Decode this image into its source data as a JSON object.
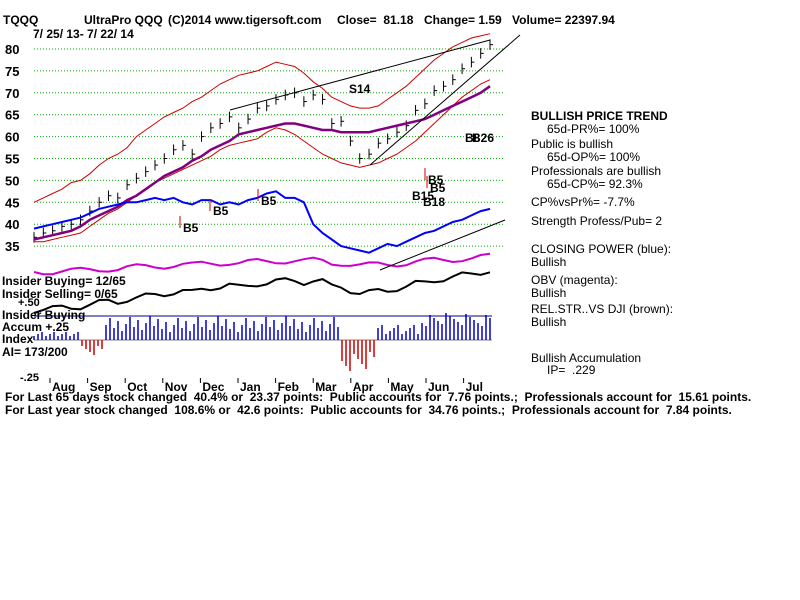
{
  "header": {
    "ticker": "TQQQ",
    "name": "UltraPro QQQ",
    "copyright": "(C)2014 www.tigersoft.com",
    "close": "Close=  81.18",
    "change": "Change= 1.59",
    "volume": "Volume= 22397.94",
    "date_range": "7/ 25/ 13- 7/ 22/ 14"
  },
  "colors": {
    "price": "#000000",
    "band": "#cc0000",
    "ma": "#800080",
    "closing_power": "#0000ff",
    "obv": "#cc00cc",
    "relstr": "#000000",
    "accum_pos": "#0000cc",
    "accum_neg": "#cc0000",
    "arrow": "#cc0000",
    "grid": "#00aa00"
  },
  "chart_data": {
    "type": "line",
    "title": "UltraPro QQQ",
    "y_ticks": [
      80,
      75,
      70,
      65,
      60,
      55,
      50,
      45,
      40,
      35
    ],
    "ylim": [
      32,
      84
    ],
    "months": [
      "Aug",
      "Sep",
      "Oct",
      "Nov",
      "Dec",
      "Jan",
      "Feb",
      "Mar",
      "Apr",
      "May",
      "Jun",
      "Jul"
    ],
    "series": [
      {
        "name": "price",
        "values": [
          37,
          38,
          38.5,
          39.5,
          40,
          41,
          43,
          45,
          46.5,
          46,
          49,
          50.5,
          52,
          53.5,
          55,
          57,
          58,
          56,
          60,
          62,
          63,
          64.5,
          62,
          64,
          66.5,
          67,
          68.5,
          69.5,
          70,
          68,
          69.5,
          68.5,
          63,
          63.5,
          59,
          55,
          56,
          58.5,
          59.5,
          61,
          62.5,
          66,
          67.5,
          70.5,
          71.5,
          73,
          75.5,
          77,
          79,
          81
        ]
      },
      {
        "values": [
          45,
          46,
          47,
          48,
          49.5,
          50,
          51.5,
          53.5,
          55,
          56,
          57.5,
          60,
          61.5,
          63,
          64.5,
          65.5,
          66.5,
          68,
          69,
          70.5,
          72,
          73,
          74,
          74.5,
          75,
          76,
          77,
          76.5,
          76,
          74.5,
          72.5,
          71,
          69,
          68,
          67,
          66.5,
          66.5,
          67,
          68.5,
          70,
          71.5,
          73.5,
          75.5,
          77.5,
          79,
          80.5,
          81.5,
          82.5,
          83,
          83.5
        ]
      },
      {
        "values": [
          36,
          36,
          36.5,
          37,
          37.5,
          38,
          39.5,
          41,
          42.5,
          43.5,
          45,
          46.5,
          48,
          49.5,
          50.5,
          51.5,
          52.5,
          53.5,
          54.5,
          55.5,
          57,
          58,
          58.5,
          59,
          59.5,
          61,
          62,
          61.5,
          60.5,
          59,
          57.5,
          56,
          55,
          54,
          53.5,
          53,
          53.5,
          54,
          55,
          56,
          57.5,
          59,
          61,
          63,
          65,
          67,
          69,
          70.5,
          72,
          73
        ]
      },
      {
        "values": [
          36.5,
          37,
          37.5,
          38,
          38.5,
          39.5,
          41,
          42,
          43,
          44,
          45.5,
          46.5,
          48,
          49.5,
          51,
          52,
          53,
          54.5,
          55.5,
          57,
          58,
          59,
          60.5,
          61,
          61.5,
          62,
          62.5,
          63,
          63,
          62.5,
          62,
          61.5,
          61.5,
          61,
          61,
          61,
          61,
          61.5,
          62,
          62.5,
          63,
          63.5,
          64,
          65,
          66,
          67,
          68,
          69,
          70,
          71.5
        ]
      },
      {
        "name": "closing_power",
        "values": [
          39,
          39.5,
          40,
          40.5,
          41,
          41.5,
          42.5,
          43.5,
          44,
          44.5,
          45,
          45,
          45.5,
          46,
          45.5,
          46,
          45,
          44.5,
          45.5,
          45.5,
          44.5,
          45,
          44.5,
          45.5,
          46,
          47,
          47.5,
          46,
          46,
          45,
          40,
          38,
          36.5,
          35,
          34.5,
          34,
          33.5,
          34.5,
          35.5,
          35,
          36,
          37,
          38,
          38.5,
          39.5,
          40.5,
          41,
          42,
          43,
          43.5
        ]
      }
    ]
  },
  "signals": {
    "s14": "S14",
    "b5": [
      "B5",
      "B5",
      "B5",
      "B5",
      "B5"
    ],
    "b15": "B15",
    "b18": "B18",
    "b26": "B26",
    "b8": "B8"
  },
  "lower_labels": {
    "insider_buying": "Insider Buying= 12/65",
    "insider_selling": "Insider Selling= 0/65",
    "plus50": "+.50",
    "insider_buying2": "Insider Buying",
    "accum": "Accum +.25",
    "index": "Index",
    "ai": "AI= 173/200",
    "minus25": "-.25"
  },
  "right_panel": {
    "trend_title": "BULLISH PRICE TREND",
    "trend_sub": "65d-PR%= 100%",
    "public_title": "Public is bullish",
    "public_sub": "65d-OP%= 100%",
    "pros_title": "Professionals are bullish",
    "pros_sub": "65d-CP%= 92.3%",
    "cp_vs_pr": "CP%vsPr%= -7.7%",
    "strength": "Strength Profess/Pub= 2",
    "cp_title": "CLOSING POWER (blue):",
    "cp_val": "Bullish",
    "obv_title": "OBV (magenta):",
    "obv_val": "Bullish",
    "rel_title": "REL.STR..VS DJI (brown):",
    "rel_val": "Bullish",
    "accum_title": "Bullish Accumulation",
    "accum_ip": "IP=  .229"
  },
  "footer": {
    "line1": "For Last 65 days stock changed  40.4% or  23.37 points:  Public accounts for  7.76 points.;  Professionals account for  15.61 points.",
    "line2": "For Last year stock changed  108.6% or  42.6 points:  Public accounts for  34.76 points.;  Professionals account for  7.84 points."
  }
}
